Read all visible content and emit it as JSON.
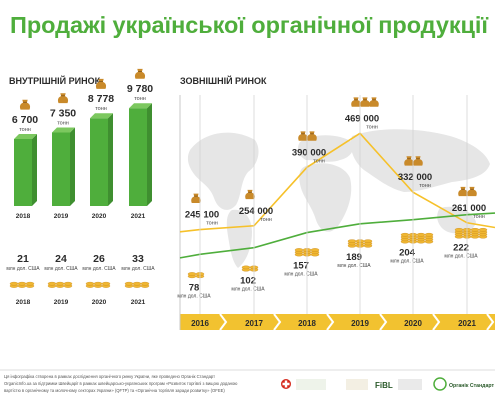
{
  "title": "Продажі української органічної продукції",
  "colors": {
    "green": "#4fae3c",
    "green_light": "#7cc85f",
    "yellow": "#f6c12a",
    "gold": "#e8a828",
    "bag": "#c98a2a",
    "coin": "#f0b732",
    "map": "#e2e2e2",
    "text": "#2b2b2b"
  },
  "internal": {
    "heading": "ВНУТРІШНІЙ РИНОК",
    "tonnage_unit": "тонн",
    "money_unit": "млн дол. США"
  },
  "external": {
    "heading": "ЗОВНІШНІЙ РИНОК",
    "tonnage_unit": "тонн",
    "money_unit": "млн дол. США"
  },
  "chart_data": [
    {
      "type": "bar",
      "title": "ВНУТРІШНІЙ РИНОК",
      "categories": [
        "2018",
        "2019",
        "2020",
        "2021"
      ],
      "series": [
        {
          "name": "тонн",
          "values": [
            6700,
            7350,
            8778,
            9780
          ],
          "labels": [
            "6 700",
            "7 350",
            "8 778",
            "9 780"
          ]
        },
        {
          "name": "млн дол. США",
          "values": [
            21,
            24,
            26,
            33
          ],
          "labels": [
            "21",
            "24",
            "26",
            "33"
          ]
        }
      ]
    },
    {
      "type": "line",
      "title": "ЗОВНІШНІЙ РИНОК",
      "x": [
        "2016",
        "2017",
        "2018",
        "2019",
        "2020",
        "2021"
      ],
      "series": [
        {
          "name": "тонн",
          "values": [
            245100,
            254000,
            390000,
            469000,
            332000,
            261000
          ],
          "labels": [
            "245 100",
            "254 000",
            "390 000",
            "469 000",
            "332 000",
            "261 000"
          ]
        },
        {
          "name": "млн дол. США",
          "values": [
            78,
            102,
            157,
            189,
            204,
            222
          ],
          "labels": [
            "78",
            "102",
            "157",
            "189",
            "204",
            "222"
          ]
        }
      ]
    }
  ],
  "footer": {
    "lines": [
      "Ця інфографіка створена в рамках дослідження органічного ринку України, яке проведено Органік Стандарт",
      "OrganicInfo.ua за підтримки Швейцарії в рамках швейцарсько-українських програм «Розвиток торгівлі з вищою доданою",
      "вартістю в органічному та молочному секторах України» (QFTP) та «Органічна торгівля заради розвитку» (OFEE)"
    ],
    "logos": [
      "FiBL",
      "Органік Стандарт"
    ]
  }
}
